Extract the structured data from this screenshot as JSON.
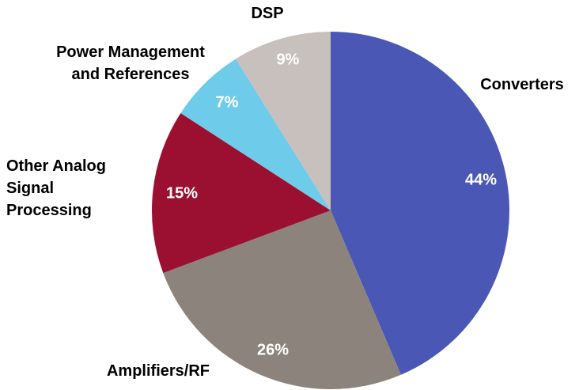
{
  "chart_data": {
    "type": "pie",
    "categories": [
      "Converters",
      "Amplifiers/RF",
      "Other Analog\nSignal\nProcessing",
      "Power Management\nand References",
      "DSP"
    ],
    "values": [
      44,
      26,
      15,
      7,
      9
    ],
    "value_labels": [
      "44%",
      "26%",
      "15%",
      "7%",
      "9%"
    ],
    "colors": [
      "#4a57b5",
      "#8c847c",
      "#9b1030",
      "#6ecbea",
      "#c8c0bc"
    ]
  }
}
